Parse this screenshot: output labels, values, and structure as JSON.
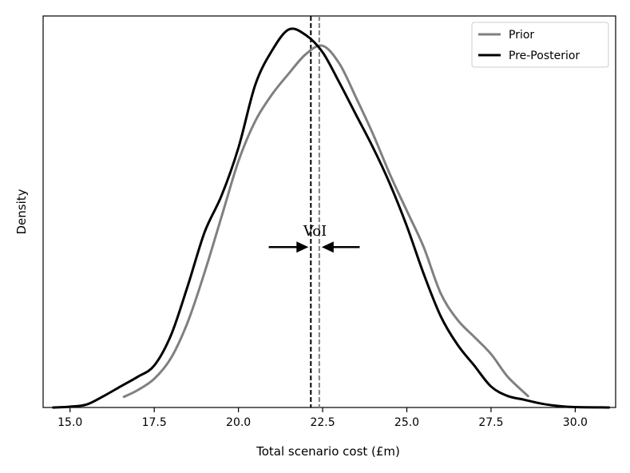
{
  "chart_data": {
    "type": "line",
    "title": "",
    "xlabel": "Total scenario cost (£m)",
    "ylabel": "Density",
    "xlim": [
      14.2,
      31.2
    ],
    "ylim": [
      0,
      1.0
    ],
    "x_ticks": [
      15.0,
      17.5,
      20.0,
      22.5,
      25.0,
      27.5,
      30.0
    ],
    "x_tick_labels": [
      "15.0",
      "17.5",
      "20.0",
      "22.5",
      "25.0",
      "27.5",
      "30.0"
    ],
    "grid": false,
    "legend_position": "top-right",
    "series": [
      {
        "name": "Prior",
        "color": "#808080",
        "mean": 22.4,
        "points": [
          [
            16.6,
            0.028
          ],
          [
            17.0,
            0.045
          ],
          [
            17.5,
            0.075
          ],
          [
            18.0,
            0.13
          ],
          [
            18.5,
            0.225
          ],
          [
            19.0,
            0.355
          ],
          [
            19.5,
            0.5
          ],
          [
            20.0,
            0.645
          ],
          [
            20.5,
            0.75
          ],
          [
            21.0,
            0.82
          ],
          [
            21.5,
            0.875
          ],
          [
            22.0,
            0.925
          ],
          [
            22.5,
            0.947
          ],
          [
            23.0,
            0.9
          ],
          [
            23.5,
            0.81
          ],
          [
            24.0,
            0.715
          ],
          [
            24.5,
            0.61
          ],
          [
            25.0,
            0.515
          ],
          [
            25.5,
            0.42
          ],
          [
            26.0,
            0.3
          ],
          [
            26.5,
            0.23
          ],
          [
            27.0,
            0.185
          ],
          [
            27.5,
            0.14
          ],
          [
            28.0,
            0.08
          ],
          [
            28.6,
            0.03
          ]
        ]
      },
      {
        "name": "Pre-Posterior",
        "color": "#000000",
        "mean": 22.15,
        "points": [
          [
            14.5,
            0.0
          ],
          [
            15.0,
            0.002
          ],
          [
            15.5,
            0.008
          ],
          [
            16.0,
            0.03
          ],
          [
            16.5,
            0.055
          ],
          [
            17.0,
            0.08
          ],
          [
            17.5,
            0.11
          ],
          [
            18.0,
            0.19
          ],
          [
            18.5,
            0.32
          ],
          [
            19.0,
            0.46
          ],
          [
            19.5,
            0.555
          ],
          [
            20.0,
            0.68
          ],
          [
            20.5,
            0.845
          ],
          [
            21.0,
            0.935
          ],
          [
            21.5,
            0.99
          ],
          [
            22.0,
            0.975
          ],
          [
            22.5,
            0.93
          ],
          [
            23.0,
            0.85
          ],
          [
            23.5,
            0.765
          ],
          [
            24.0,
            0.68
          ],
          [
            24.5,
            0.585
          ],
          [
            25.0,
            0.475
          ],
          [
            25.5,
            0.35
          ],
          [
            26.0,
            0.24
          ],
          [
            26.5,
            0.165
          ],
          [
            27.0,
            0.11
          ],
          [
            27.5,
            0.055
          ],
          [
            28.0,
            0.03
          ],
          [
            28.5,
            0.02
          ],
          [
            29.0,
            0.01
          ],
          [
            29.5,
            0.004
          ],
          [
            30.0,
            0.001
          ],
          [
            31.0,
            0.0
          ]
        ]
      }
    ],
    "annotations": [
      {
        "text": "VoI",
        "y": 0.42,
        "arrow_left_from": 20.9,
        "arrow_right_from": 23.6,
        "between": [
          22.15,
          22.4
        ]
      }
    ]
  }
}
